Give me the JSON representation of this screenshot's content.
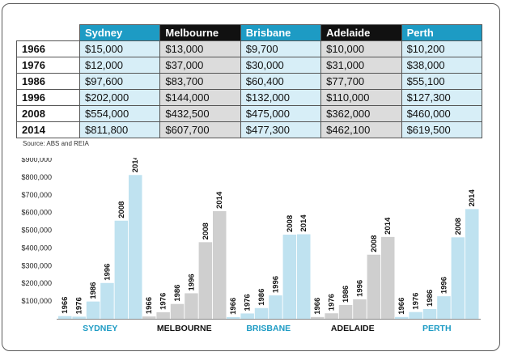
{
  "table": {
    "columns": [
      "Sydney",
      "Melbourne",
      "Brisbane",
      "Adelaide",
      "Perth"
    ],
    "header_colors": [
      "#1d9bc4",
      "#111111",
      "#1d9bc4",
      "#111111",
      "#1d9bc4"
    ],
    "cell_colors": [
      "#d7eef7",
      "#dcdcdc",
      "#d7eef7",
      "#dcdcdc",
      "#d7eef7"
    ],
    "rows": [
      {
        "year": "1966",
        "values": [
          "$15,000",
          "$13,000",
          "$9,700",
          "$10,000",
          "$10,200"
        ]
      },
      {
        "year": "1976",
        "values": [
          "$12,000",
          "$37,000",
          "$30,000",
          "$31,000",
          "$38,000"
        ]
      },
      {
        "year": "1986",
        "values": [
          "$97,600",
          "$83,700",
          "$60,400",
          "$77,700",
          "$55,100"
        ]
      },
      {
        "year": "1996",
        "values": [
          "$202,000",
          "$144,000",
          "$132,000",
          "$110,000",
          "$127,300"
        ]
      },
      {
        "year": "2008",
        "values": [
          "$554,000",
          "$432,500",
          "$475,000",
          "$362,000",
          "$460,000"
        ]
      },
      {
        "year": "2014",
        "values": [
          "$811,800",
          "$607,700",
          "$477,300",
          "$462,100",
          "$619,500"
        ]
      }
    ]
  },
  "source": "Source: ABS and REIA",
  "chart_data": {
    "type": "bar",
    "categories": [
      "SYDNEY",
      "MELBOURNE",
      "BRISBANE",
      "ADELAIDE",
      "PERTH"
    ],
    "category_colors": [
      "#1d9bc4",
      "#111111",
      "#1d9bc4",
      "#111111",
      "#1d9bc4"
    ],
    "bar_colors": [
      "#bfe2f0",
      "#cfcfcf",
      "#bfe2f0",
      "#cfcfcf",
      "#bfe2f0"
    ],
    "bar_labels": [
      "1966",
      "1976",
      "1986",
      "1996",
      "2008",
      "2014"
    ],
    "series_values": [
      [
        15000,
        12000,
        97600,
        202000,
        554000,
        811800
      ],
      [
        13000,
        37000,
        83700,
        144000,
        432500,
        607700
      ],
      [
        9700,
        30000,
        60400,
        132000,
        475000,
        477300
      ],
      [
        10000,
        31000,
        77700,
        110000,
        362000,
        462100
      ],
      [
        10200,
        38000,
        55100,
        127300,
        460000,
        619500
      ]
    ],
    "y_ticks": [
      100000,
      200000,
      300000,
      400000,
      500000,
      600000,
      700000,
      800000,
      900000
    ],
    "y_tick_labels": [
      "$100,000",
      "$200,000",
      "$300,000",
      "$400,000",
      "$500,000",
      "$600,000",
      "$700,000",
      "$800,000",
      "$900,000"
    ],
    "ylim": [
      0,
      900000
    ],
    "grid": false
  }
}
